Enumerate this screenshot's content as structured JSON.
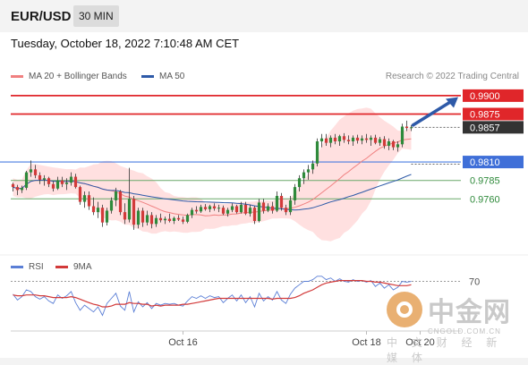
{
  "header": {
    "pair": "EUR/USD",
    "timeframe": "30 MIN"
  },
  "datetime": "Tuesday, October 18, 2022 7:10:48 AM CET",
  "legend": {
    "ma20": {
      "label": "MA 20 + Bollinger Bands",
      "color": "#f08080"
    },
    "ma50": {
      "label": "MA 50",
      "color": "#2e5aa8"
    }
  },
  "credit": "Research © 2022 Trading Central",
  "rsi_legend": {
    "rsi": {
      "label": "RSI",
      "color": "#5b7fd6"
    },
    "ma9": {
      "label": "9MA",
      "color": "#d23a3a"
    }
  },
  "watermark": {
    "cn": "中金网",
    "domain": "CNGOLD.COM.CN",
    "sub": "中 文 财 经 新 媒 体"
  },
  "colors": {
    "up": "#2f8a3b",
    "down": "#d23a3a",
    "resistance": "#e0262a",
    "support": "#4a7de0",
    "target": "#2e5aa8"
  },
  "chart_data": [
    {
      "type": "candlestick",
      "title": "EUR/USD 30 MIN",
      "x_ticks": [
        "Oct 16",
        "Oct 18",
        "Oct 20"
      ],
      "ylim": [
        0.969,
        0.9912
      ],
      "levels": [
        {
          "value": "0.9900",
          "kind": "resistance"
        },
        {
          "value": "0.9875",
          "kind": "resistance"
        },
        {
          "value": "0.9857",
          "kind": "last-price"
        },
        {
          "value": "0.9810",
          "kind": "support"
        },
        {
          "value": "0.9785",
          "kind": "support"
        },
        {
          "value": "0.9760",
          "kind": "support"
        }
      ],
      "candles": [
        [
          0.978,
          0.9782,
          0.977,
          0.9776
        ],
        [
          0.9776,
          0.9779,
          0.9765,
          0.9772
        ],
        [
          0.9772,
          0.9778,
          0.9768,
          0.9775
        ],
        [
          0.9775,
          0.9798,
          0.9772,
          0.9796
        ],
        [
          0.9796,
          0.9812,
          0.979,
          0.98
        ],
        [
          0.98,
          0.9806,
          0.9788,
          0.9792
        ],
        [
          0.9792,
          0.9796,
          0.978,
          0.9786
        ],
        [
          0.9786,
          0.9792,
          0.9778,
          0.9788
        ],
        [
          0.9788,
          0.979,
          0.9776,
          0.978
        ],
        [
          0.978,
          0.9784,
          0.977,
          0.9774
        ],
        [
          0.9774,
          0.979,
          0.9772,
          0.9785
        ],
        [
          0.9785,
          0.979,
          0.9776,
          0.978
        ],
        [
          0.978,
          0.9788,
          0.9772,
          0.9782
        ],
        [
          0.9782,
          0.9796,
          0.9778,
          0.979
        ],
        [
          0.979,
          0.9794,
          0.9774,
          0.9776
        ],
        [
          0.9776,
          0.9778,
          0.9752,
          0.9756
        ],
        [
          0.9756,
          0.977,
          0.9748,
          0.9765
        ],
        [
          0.9765,
          0.977,
          0.9745,
          0.975
        ],
        [
          0.975,
          0.9762,
          0.9738,
          0.9742
        ],
        [
          0.9742,
          0.9756,
          0.9734,
          0.9748
        ],
        [
          0.9748,
          0.9752,
          0.9722,
          0.9728
        ],
        [
          0.9728,
          0.9748,
          0.9724,
          0.9744
        ],
        [
          0.9744,
          0.9762,
          0.974,
          0.9758
        ],
        [
          0.9758,
          0.9775,
          0.975,
          0.977
        ],
        [
          0.977,
          0.9772,
          0.9738,
          0.9742
        ],
        [
          0.9742,
          0.9754,
          0.9726,
          0.9732
        ],
        [
          0.9732,
          0.9802,
          0.9728,
          0.976
        ],
        [
          0.976,
          0.9764,
          0.9718,
          0.9725
        ],
        [
          0.9725,
          0.9748,
          0.972,
          0.9744
        ],
        [
          0.9744,
          0.9748,
          0.9722,
          0.9728
        ],
        [
          0.9728,
          0.9744,
          0.9724,
          0.9738
        ],
        [
          0.9738,
          0.9742,
          0.972,
          0.9726
        ],
        [
          0.9726,
          0.9738,
          0.9722,
          0.9734
        ],
        [
          0.9734,
          0.974,
          0.9728,
          0.9731
        ],
        [
          0.9731,
          0.9736,
          0.9726,
          0.9733
        ],
        [
          0.9733,
          0.974,
          0.9728,
          0.973
        ],
        [
          0.973,
          0.9736,
          0.9726,
          0.9734
        ],
        [
          0.9734,
          0.9738,
          0.973,
          0.9732
        ],
        [
          0.9732,
          0.9736,
          0.9726,
          0.9729
        ],
        [
          0.9729,
          0.974,
          0.9727,
          0.9738
        ],
        [
          0.9738,
          0.9748,
          0.9734,
          0.9745
        ],
        [
          0.9745,
          0.975,
          0.974,
          0.9743
        ],
        [
          0.9743,
          0.9752,
          0.9741,
          0.9749
        ],
        [
          0.9749,
          0.9753,
          0.9744,
          0.9746
        ],
        [
          0.9746,
          0.9752,
          0.9742,
          0.975
        ],
        [
          0.975,
          0.9754,
          0.9744,
          0.9747
        ],
        [
          0.9747,
          0.9752,
          0.9742,
          0.9748
        ],
        [
          0.9748,
          0.9751,
          0.9738,
          0.974
        ],
        [
          0.974,
          0.9748,
          0.9736,
          0.9745
        ],
        [
          0.9745,
          0.9754,
          0.9742,
          0.975
        ],
        [
          0.975,
          0.9752,
          0.974,
          0.9742
        ],
        [
          0.9742,
          0.9756,
          0.974,
          0.9752
        ],
        [
          0.9752,
          0.9756,
          0.9738,
          0.974
        ],
        [
          0.974,
          0.9752,
          0.9736,
          0.9748
        ],
        [
          0.9748,
          0.975,
          0.9726,
          0.973
        ],
        [
          0.973,
          0.976,
          0.9728,
          0.9755
        ],
        [
          0.9755,
          0.976,
          0.974,
          0.9744
        ],
        [
          0.9744,
          0.9754,
          0.9742,
          0.975
        ],
        [
          0.975,
          0.9756,
          0.974,
          0.9744
        ],
        [
          0.9744,
          0.977,
          0.9742,
          0.9764
        ],
        [
          0.9764,
          0.9768,
          0.9744,
          0.9748
        ],
        [
          0.9748,
          0.9752,
          0.9738,
          0.9742
        ],
        [
          0.9742,
          0.9764,
          0.9738,
          0.9758
        ],
        [
          0.9758,
          0.978,
          0.9752,
          0.9776
        ],
        [
          0.9776,
          0.9792,
          0.977,
          0.9788
        ],
        [
          0.9788,
          0.98,
          0.978,
          0.9796
        ],
        [
          0.9796,
          0.9806,
          0.9786,
          0.98
        ],
        [
          0.98,
          0.9812,
          0.9794,
          0.9808
        ],
        [
          0.9808,
          0.9842,
          0.9804,
          0.9838
        ],
        [
          0.9838,
          0.9848,
          0.983,
          0.9842
        ],
        [
          0.9842,
          0.9848,
          0.9832,
          0.9836
        ],
        [
          0.9836,
          0.9846,
          0.983,
          0.9843
        ],
        [
          0.9843,
          0.9848,
          0.9834,
          0.9838
        ],
        [
          0.9838,
          0.9847,
          0.9832,
          0.9845
        ],
        [
          0.9845,
          0.9849,
          0.9836,
          0.984
        ],
        [
          0.984,
          0.9846,
          0.9834,
          0.9838
        ],
        [
          0.9838,
          0.9846,
          0.9832,
          0.9843
        ],
        [
          0.9843,
          0.9847,
          0.9835,
          0.9839
        ],
        [
          0.9839,
          0.9846,
          0.9834,
          0.9842
        ],
        [
          0.9842,
          0.9848,
          0.9836,
          0.984
        ],
        [
          0.984,
          0.9846,
          0.9832,
          0.9843
        ],
        [
          0.9843,
          0.9847,
          0.9834,
          0.9836
        ],
        [
          0.9836,
          0.9844,
          0.9832,
          0.9841
        ],
        [
          0.9841,
          0.9845,
          0.9828,
          0.9832
        ],
        [
          0.9832,
          0.9842,
          0.9826,
          0.9838
        ],
        [
          0.9838,
          0.984,
          0.9826,
          0.983
        ],
        [
          0.983,
          0.9838,
          0.9824,
          0.9834
        ],
        [
          0.9834,
          0.9862,
          0.983,
          0.9858
        ],
        [
          0.9858,
          0.9866,
          0.9852,
          0.9856
        ],
        [
          0.9856,
          0.986,
          0.9852,
          0.9857
        ]
      ]
    },
    {
      "type": "line",
      "title": "RSI",
      "yticks": [
        "70"
      ],
      "ylim": [
        20,
        80
      ],
      "series": [
        {
          "name": "RSI",
          "values": [
            55,
            48,
            52,
            60,
            58,
            52,
            49,
            52,
            47,
            44,
            54,
            50,
            53,
            58,
            45,
            36,
            42,
            38,
            34,
            40,
            30,
            44,
            50,
            56,
            41,
            36,
            58,
            34,
            46,
            40,
            45,
            38,
            44,
            42,
            44,
            43,
            44,
            42,
            41,
            47,
            52,
            50,
            53,
            50,
            53,
            51,
            52,
            45,
            50,
            54,
            47,
            54,
            45,
            52,
            40,
            56,
            47,
            52,
            48,
            58,
            48,
            44,
            55,
            62,
            66,
            70,
            70,
            72,
            76,
            76,
            72,
            74,
            70,
            73,
            70,
            69,
            72,
            70,
            71,
            69,
            71,
            64,
            68,
            62,
            66,
            60,
            63,
            70,
            69,
            70
          ]
        },
        {
          "name": "9MA",
          "values": [
            54,
            53,
            53,
            54,
            54,
            54,
            53,
            53,
            52,
            51,
            51,
            51,
            51,
            52,
            51,
            49,
            47,
            45,
            43,
            42,
            40,
            40,
            41,
            43,
            43,
            43,
            45,
            44,
            44,
            43,
            43,
            41,
            42,
            41,
            42,
            42,
            42,
            42,
            43,
            43,
            44,
            45,
            46,
            47,
            48,
            49,
            50,
            50,
            50,
            50,
            50,
            50,
            50,
            50,
            50,
            50,
            50,
            50,
            49,
            50,
            50,
            50,
            50,
            51,
            53,
            56,
            58,
            60,
            63,
            66,
            68,
            69,
            70,
            71,
            71,
            71,
            71,
            71,
            71,
            70,
            70,
            69,
            69,
            68,
            67,
            66,
            65,
            65,
            65,
            66
          ]
        }
      ]
    }
  ]
}
